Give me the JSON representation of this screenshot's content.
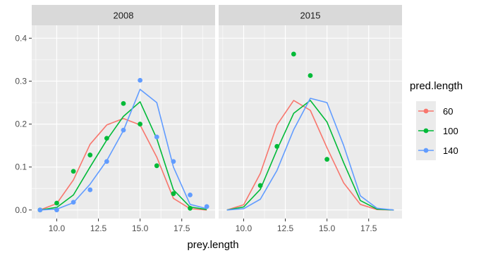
{
  "chart_data": {
    "type": "line",
    "xlabel": "prey.length",
    "ylabel": "",
    "xlim": [
      8.5,
      19.5
    ],
    "ylim": [
      -0.02,
      0.43
    ],
    "x_ticks": [
      10,
      12.5,
      15,
      17.5
    ],
    "x_tick_labels": [
      "10.0",
      "12.5",
      "15.0",
      "17.5"
    ],
    "y_ticks": [
      0,
      0.1,
      0.2,
      0.3,
      0.4
    ],
    "y_tick_labels": [
      "0.0",
      "0.1",
      "0.2",
      "0.3",
      "0.4"
    ],
    "legend": {
      "title": "pred.length",
      "position": "right",
      "entries": [
        {
          "label": "60",
          "color": "#F8766D"
        },
        {
          "label": "100",
          "color": "#00BA38"
        },
        {
          "label": "140",
          "color": "#619CFF"
        }
      ]
    },
    "panels": [
      {
        "strip": "2008",
        "lines": [
          {
            "name": "60",
            "color": "#F8766D",
            "x": [
              9,
              10,
              11,
              12,
              13,
              14,
              15,
              16,
              17,
              18,
              19
            ],
            "y": [
              0.0,
              0.015,
              0.07,
              0.153,
              0.198,
              0.213,
              0.198,
              0.123,
              0.027,
              0.003,
              0.0
            ]
          },
          {
            "name": "100",
            "color": "#00BA38",
            "x": [
              9,
              10,
              11,
              12,
              13,
              14,
              15,
              16,
              17,
              18,
              19
            ],
            "y": [
              0.0,
              0.006,
              0.035,
              0.1,
              0.163,
              0.218,
              0.252,
              0.166,
              0.047,
              0.007,
              0.001
            ]
          },
          {
            "name": "140",
            "color": "#619CFF",
            "x": [
              9,
              10,
              11,
              12,
              13,
              14,
              15,
              16,
              17,
              18,
              19
            ],
            "y": [
              0.0,
              0.002,
              0.017,
              0.06,
              0.115,
              0.185,
              0.281,
              0.25,
              0.1,
              0.013,
              0.003
            ]
          }
        ],
        "points": [
          {
            "name": "100",
            "color": "#00BA38",
            "x": [
              9,
              10,
              11,
              12,
              13,
              14,
              15,
              16,
              17,
              18
            ],
            "y": [
              0.0,
              0.016,
              0.09,
              0.128,
              0.167,
              0.248,
              0.2,
              0.103,
              0.038,
              0.004
            ]
          },
          {
            "name": "140",
            "color": "#619CFF",
            "x": [
              9,
              10,
              11,
              12,
              13,
              14,
              15,
              16,
              17,
              18,
              19
            ],
            "y": [
              0.0,
              0.0,
              0.018,
              0.047,
              0.113,
              0.186,
              0.302,
              0.17,
              0.113,
              0.035,
              0.008
            ]
          }
        ]
      },
      {
        "strip": "2015",
        "lines": [
          {
            "name": "60",
            "color": "#F8766D",
            "x": [
              9,
              10,
              11,
              12,
              13,
              14,
              15,
              16,
              17,
              18,
              19
            ],
            "y": [
              0.0,
              0.012,
              0.085,
              0.198,
              0.255,
              0.232,
              0.145,
              0.063,
              0.013,
              0.001,
              0.0
            ]
          },
          {
            "name": "100",
            "color": "#00BA38",
            "x": [
              9,
              10,
              11,
              12,
              13,
              14,
              15,
              16,
              17,
              18,
              19
            ],
            "y": [
              0.0,
              0.007,
              0.048,
              0.14,
              0.225,
              0.255,
              0.205,
              0.11,
              0.022,
              0.002,
              0.0
            ]
          },
          {
            "name": "140",
            "color": "#619CFF",
            "x": [
              9,
              10,
              11,
              12,
              13,
              14,
              15,
              16,
              17,
              18,
              19
            ],
            "y": [
              0.0,
              0.003,
              0.025,
              0.092,
              0.187,
              0.26,
              0.25,
              0.15,
              0.033,
              0.004,
              0.0
            ]
          }
        ],
        "points": [
          {
            "name": "100",
            "color": "#00BA38",
            "x": [
              11,
              12,
              13,
              14,
              15
            ],
            "y": [
              0.057,
              0.148,
              0.363,
              0.313,
              0.118
            ]
          }
        ]
      }
    ]
  }
}
